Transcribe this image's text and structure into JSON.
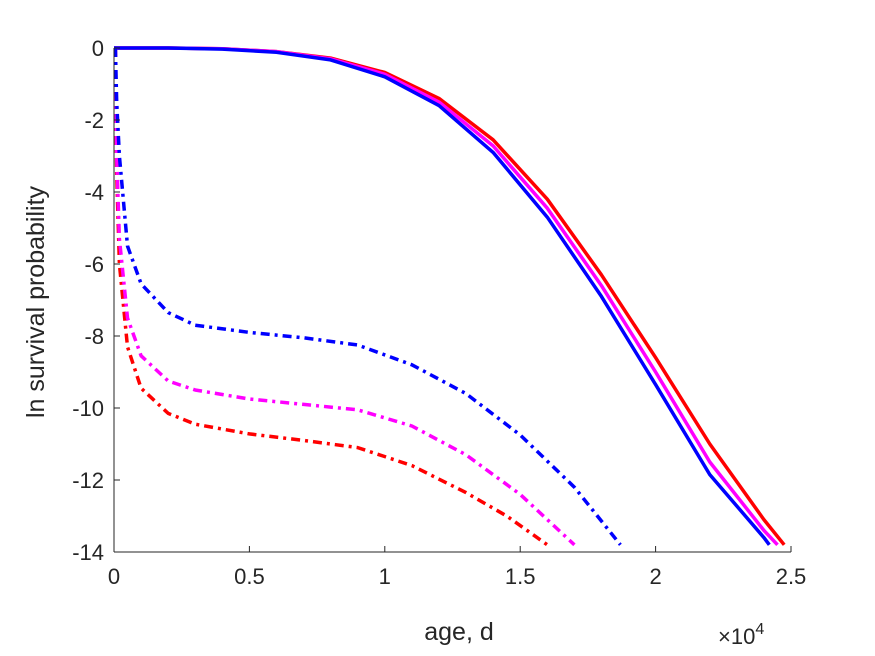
{
  "chart_data": {
    "type": "line",
    "title": "",
    "xlabel": "age, d",
    "ylabel": "ln survival probability",
    "x_exponent_label": {
      "base": "×10",
      "exponent": "4"
    },
    "x_scale": 10000,
    "xlim": [
      0,
      25000
    ],
    "ylim": [
      -14,
      0
    ],
    "x_ticks": [
      0,
      5000,
      10000,
      15000,
      20000,
      25000
    ],
    "x_tick_labels": [
      "0",
      "0.5",
      "1",
      "1.5",
      "2",
      "2.5"
    ],
    "y_ticks": [
      0,
      -2,
      -4,
      -6,
      -8,
      -10,
      -12,
      -14
    ],
    "y_tick_labels": [
      "0",
      "-2",
      "-4",
      "-6",
      "-8",
      "-10",
      "-12",
      "-14"
    ],
    "grid": false,
    "legend": "none",
    "series": [
      {
        "color": "#ff0000",
        "style": "solid",
        "points": [
          [
            0,
            0
          ],
          [
            2000,
            0
          ],
          [
            4000,
            -0.02
          ],
          [
            6000,
            -0.1
          ],
          [
            8000,
            -0.28
          ],
          [
            10000,
            -0.68
          ],
          [
            12000,
            -1.4
          ],
          [
            14000,
            -2.55
          ],
          [
            16000,
            -4.2
          ],
          [
            18000,
            -6.3
          ],
          [
            20000,
            -8.6
          ],
          [
            22000,
            -11.0
          ],
          [
            24000,
            -13.1
          ],
          [
            24750,
            -13.8
          ]
        ]
      },
      {
        "color": "#ff00ff",
        "style": "solid",
        "points": [
          [
            0,
            0
          ],
          [
            2000,
            0
          ],
          [
            4000,
            -0.02
          ],
          [
            6000,
            -0.1
          ],
          [
            8000,
            -0.3
          ],
          [
            10000,
            -0.73
          ],
          [
            12000,
            -1.5
          ],
          [
            14000,
            -2.72
          ],
          [
            16000,
            -4.45
          ],
          [
            18000,
            -6.6
          ],
          [
            20000,
            -9.0
          ],
          [
            22000,
            -11.5
          ],
          [
            24000,
            -13.4
          ],
          [
            24500,
            -13.8
          ]
        ]
      },
      {
        "color": "#0000ff",
        "style": "solid",
        "points": [
          [
            0,
            0
          ],
          [
            2000,
            0
          ],
          [
            4000,
            -0.03
          ],
          [
            6000,
            -0.12
          ],
          [
            8000,
            -0.33
          ],
          [
            10000,
            -0.8
          ],
          [
            12000,
            -1.6
          ],
          [
            14000,
            -2.9
          ],
          [
            16000,
            -4.7
          ],
          [
            18000,
            -6.9
          ],
          [
            20000,
            -9.35
          ],
          [
            22000,
            -11.85
          ],
          [
            24000,
            -13.6
          ],
          [
            24200,
            -13.8
          ]
        ]
      },
      {
        "color": "#ff0000",
        "style": "dashdot",
        "points": [
          [
            50,
            0
          ],
          [
            100,
            -3.5
          ],
          [
            200,
            -6.0
          ],
          [
            500,
            -8.3
          ],
          [
            1000,
            -9.45
          ],
          [
            2000,
            -10.15
          ],
          [
            3000,
            -10.45
          ],
          [
            5000,
            -10.72
          ],
          [
            7000,
            -10.9
          ],
          [
            9000,
            -11.1
          ],
          [
            11000,
            -11.6
          ],
          [
            13000,
            -12.35
          ],
          [
            14500,
            -13.0
          ],
          [
            16000,
            -13.8
          ]
        ]
      },
      {
        "color": "#ff00ff",
        "style": "dashdot",
        "points": [
          [
            50,
            0
          ],
          [
            100,
            -3.0
          ],
          [
            200,
            -5.3
          ],
          [
            500,
            -7.5
          ],
          [
            1000,
            -8.55
          ],
          [
            2000,
            -9.25
          ],
          [
            3000,
            -9.5
          ],
          [
            5000,
            -9.75
          ],
          [
            7000,
            -9.9
          ],
          [
            9000,
            -10.05
          ],
          [
            11000,
            -10.5
          ],
          [
            13000,
            -11.3
          ],
          [
            15000,
            -12.4
          ],
          [
            17000,
            -13.8
          ]
        ]
      },
      {
        "color": "#0000ff",
        "style": "dashdot",
        "points": [
          [
            50,
            0
          ],
          [
            100,
            -1.5
          ],
          [
            200,
            -3.0
          ],
          [
            500,
            -5.5
          ],
          [
            1000,
            -6.55
          ],
          [
            2000,
            -7.35
          ],
          [
            3000,
            -7.7
          ],
          [
            5000,
            -7.9
          ],
          [
            7000,
            -8.05
          ],
          [
            9000,
            -8.25
          ],
          [
            11000,
            -8.8
          ],
          [
            13000,
            -9.6
          ],
          [
            15000,
            -10.75
          ],
          [
            17000,
            -12.2
          ],
          [
            18700,
            -13.8
          ]
        ]
      }
    ]
  }
}
